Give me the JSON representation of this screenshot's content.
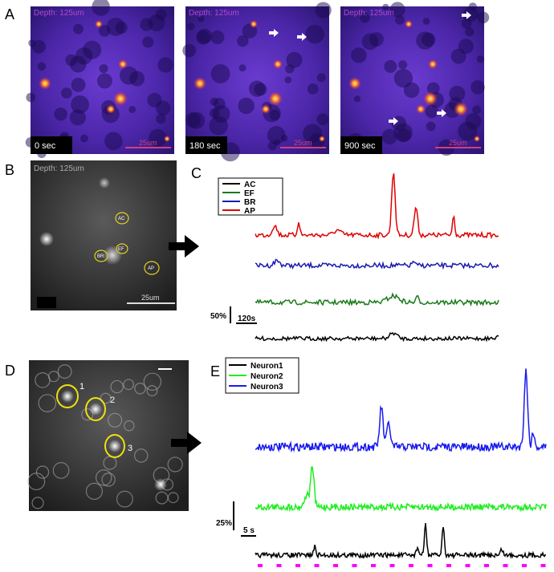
{
  "panels": {
    "A": {
      "label": "A",
      "images": [
        {
          "depth": "Depth: 125um",
          "time": "0 sec",
          "scale": "25um"
        },
        {
          "depth": "Depth: 125um",
          "time": "180 sec",
          "scale": "25um"
        },
        {
          "depth": "Depth: 125um",
          "time": "900 sec",
          "scale": "25um"
        }
      ]
    },
    "B": {
      "label": "B",
      "depth": "Depth: 125um",
      "scale": "25um",
      "rois": [
        "AC",
        "EF",
        "BR",
        "AP"
      ]
    },
    "C": {
      "label": "C",
      "legend": [
        "AC",
        "EF",
        "BR",
        "AP"
      ],
      "scale_y": "50%",
      "scale_x": "120s"
    },
    "D": {
      "label": "D",
      "rois": [
        "1",
        "2",
        "3"
      ]
    },
    "E": {
      "label": "E",
      "legend": [
        "Neuron1",
        "Neuron2",
        "Neuron3"
      ],
      "scale_y": "25%",
      "scale_x": "5 s"
    }
  }
}
